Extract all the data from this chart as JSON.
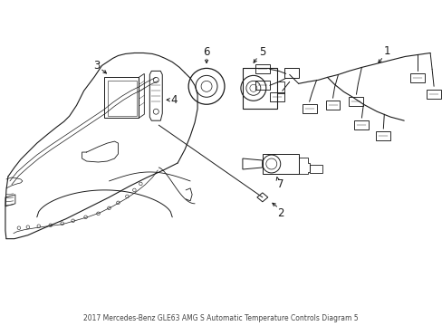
{
  "bg_color": "#ffffff",
  "line_color": "#1a1a1a",
  "figsize": [
    4.89,
    3.6
  ],
  "dpi": 100,
  "title": "2017 Mercedes-Benz GLE63 AMG S Automatic Temperature Controls Diagram 5"
}
